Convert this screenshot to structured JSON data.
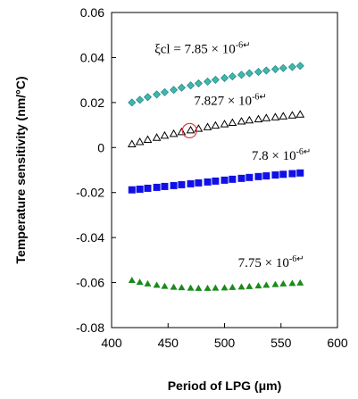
{
  "chart_data": {
    "type": "scatter",
    "xlabel": "Period of LPG (μm)",
    "ylabel": "Temperature sensitivity (nm/°C)",
    "xlim": [
      400,
      600
    ],
    "ylim": [
      -0.08,
      0.06
    ],
    "xticks": [
      "400",
      "450",
      "500",
      "550",
      "600"
    ],
    "yticks": [
      "-0.08",
      "-0.06",
      "-0.04",
      "-0.02",
      "0",
      "0.02",
      "0.04",
      "0.06"
    ],
    "grid": false,
    "series": [
      {
        "name": "ξcl = 7.85×10-6",
        "marker": "diamond",
        "color": "#3cb8b0",
        "x": [
          418,
          425,
          432,
          440,
          447,
          455,
          462,
          470,
          477,
          485,
          492,
          500,
          507,
          515,
          522,
          530,
          537,
          545,
          552,
          560,
          567
        ],
        "y": [
          0.02,
          0.0212,
          0.0224,
          0.0236,
          0.0246,
          0.0256,
          0.0266,
          0.0276,
          0.0285,
          0.0293,
          0.0301,
          0.0309,
          0.0316,
          0.0323,
          0.033,
          0.0336,
          0.0342,
          0.0348,
          0.0353,
          0.0358,
          0.0363
        ]
      },
      {
        "name": "7.827×10-6",
        "marker": "triangle-open",
        "color": "#000000",
        "x": [
          418,
          425,
          432,
          440,
          447,
          455,
          462,
          470,
          477,
          485,
          492,
          500,
          507,
          515,
          522,
          530,
          537,
          545,
          552,
          560,
          567
        ],
        "y": [
          0.0015,
          0.0025,
          0.0035,
          0.0044,
          0.0053,
          0.0061,
          0.0069,
          0.0077,
          0.0084,
          0.0091,
          0.0098,
          0.0104,
          0.011,
          0.0116,
          0.0121,
          0.0126,
          0.0131,
          0.0135,
          0.0139,
          0.0143,
          0.0147
        ]
      },
      {
        "name": "7.8×10-6",
        "marker": "square",
        "color": "#1010e6",
        "x": [
          418,
          425,
          432,
          440,
          447,
          455,
          462,
          470,
          477,
          485,
          492,
          500,
          507,
          515,
          522,
          530,
          537,
          545,
          552,
          560,
          567
        ],
        "y": [
          -0.0188,
          -0.0185,
          -0.0181,
          -0.0177,
          -0.0173,
          -0.0169,
          -0.0165,
          -0.0161,
          -0.0157,
          -0.0153,
          -0.0149,
          -0.0145,
          -0.0141,
          -0.0137,
          -0.0133,
          -0.0129,
          -0.0126,
          -0.0122,
          -0.0119,
          -0.0116,
          -0.0113
        ]
      },
      {
        "name": "7.75×10-6",
        "marker": "triangle",
        "color": "#1a8a1a",
        "x": [
          418,
          425,
          432,
          440,
          447,
          455,
          462,
          470,
          477,
          485,
          492,
          500,
          507,
          515,
          522,
          530,
          537,
          545,
          552,
          560,
          567
        ],
        "y": [
          -0.059,
          -0.0598,
          -0.0605,
          -0.0611,
          -0.0616,
          -0.062,
          -0.0622,
          -0.0624,
          -0.0625,
          -0.0625,
          -0.0624,
          -0.0623,
          -0.0621,
          -0.0619,
          -0.0617,
          -0.0614,
          -0.0611,
          -0.0608,
          -0.0605,
          -0.0603,
          -0.0601
        ]
      }
    ],
    "annotations": [
      {
        "main": "ξcl = 7.85 × 10",
        "sup": "-6↵",
        "x": 438,
        "y": 0.042
      },
      {
        "main": "7.827 × 10",
        "sup": "-6↵",
        "x": 473,
        "y": 0.019
      },
      {
        "main": "7.8 × 10",
        "sup": "-6↵",
        "x": 524,
        "y": -0.0055
      },
      {
        "main": "7.75 × 10",
        "sup": "-6↵",
        "x": 512,
        "y": -0.053
      }
    ],
    "highlight": {
      "x": 469,
      "y": 0.0075,
      "color": "#e04040"
    }
  }
}
